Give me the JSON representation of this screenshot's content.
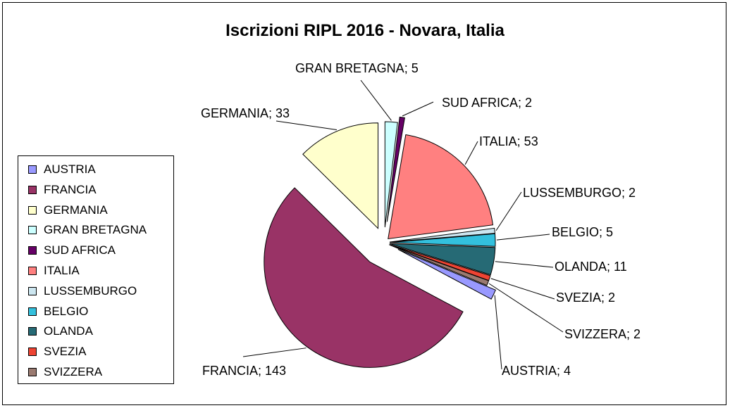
{
  "chart_data": {
    "type": "pie",
    "title": "Iscrizioni RIPL 2016 - Novara, Italia",
    "legend_position": "left",
    "categories": [
      "AUSTRIA",
      "FRANCIA",
      "GERMANIA",
      "GRAN BRETAGNA",
      "SUD AFRICA",
      "ITALIA",
      "LUSSEMBURGO",
      "BELGIO",
      "OLANDA",
      "SVEZIA",
      "SVIZZERA"
    ],
    "values": [
      4,
      143,
      33,
      5,
      2,
      53,
      2,
      5,
      11,
      2,
      2
    ],
    "colors": [
      "#9999ff",
      "#993366",
      "#ffffcc",
      "#ccffff",
      "#660066",
      "#ff8080",
      "#cce6f0",
      "#33c0dd",
      "#266a75",
      "#ee4433",
      "#9a7a70"
    ],
    "data_labels": [
      "AUSTRIA; 4",
      "FRANCIA; 143",
      "GERMANIA; 33",
      "GRAN BRETAGNA; 5",
      "SUD AFRICA; 2",
      "ITALIA; 53",
      "LUSSEMBURGO; 2",
      "BELGIO; 5",
      "OLANDA; 11",
      "SVEZIA; 2",
      "SVIZZERA; 2"
    ]
  }
}
